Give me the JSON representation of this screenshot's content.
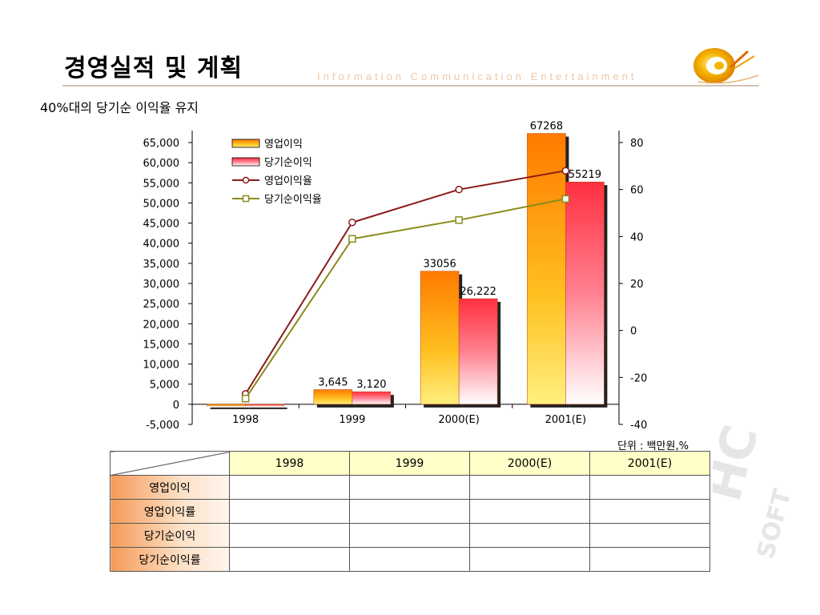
{
  "slide": {
    "title": "경영실적 및 계획",
    "tagline": "Information  Communication  Entertainment",
    "subtitle": "40%대의 당기순 이익율 유지",
    "unit": "단위 : 백만원,%"
  },
  "chart_data": {
    "type": "bar",
    "categories": [
      "1998",
      "1999",
      "2000(E)",
      "2001(E)"
    ],
    "series": [
      {
        "name": "영업이익",
        "kind": "bar",
        "axis": "left",
        "values": [
          -400,
          3645,
          33056,
          67268
        ],
        "labels": [
          "",
          "3,645",
          "33056",
          "67268"
        ],
        "color": "#ff9a20"
      },
      {
        "name": "당기순이익",
        "kind": "bar",
        "axis": "left",
        "values": [
          -400,
          3120,
          26222,
          55219
        ],
        "labels": [
          "",
          "3,120",
          "26,222",
          "55219"
        ],
        "color": "#ff5060"
      },
      {
        "name": "영업이익율",
        "kind": "line",
        "axis": "right",
        "values": [
          -27,
          46,
          60,
          68
        ],
        "color": "#8b1a1a",
        "marker": "circle"
      },
      {
        "name": "당기순이익율",
        "kind": "line",
        "axis": "right",
        "values": [
          -29,
          39,
          47,
          56
        ],
        "color": "#8b8b1a",
        "marker": "square"
      }
    ],
    "left_axis": {
      "min": -5000,
      "max": 65000,
      "ticks": [
        "-5,000",
        "0",
        "5,000",
        "10,000",
        "15,000",
        "20,000",
        "25,000",
        "30,000",
        "35,000",
        "40,000",
        "45,000",
        "50,000",
        "55,000",
        "60,000",
        "65,000"
      ]
    },
    "right_axis": {
      "min": -40,
      "max": 80,
      "ticks": [
        "-40",
        "-20",
        "0",
        "20",
        "40",
        "60",
        "80"
      ]
    },
    "legend": "top-left"
  },
  "table": {
    "headers": [
      "1998",
      "1999",
      "2000(E)",
      "2001(E)"
    ],
    "rows": [
      {
        "label": "영업이익"
      },
      {
        "label": "영업이익률"
      },
      {
        "label": "당기순이익"
      },
      {
        "label": "당기순이익률"
      }
    ]
  }
}
